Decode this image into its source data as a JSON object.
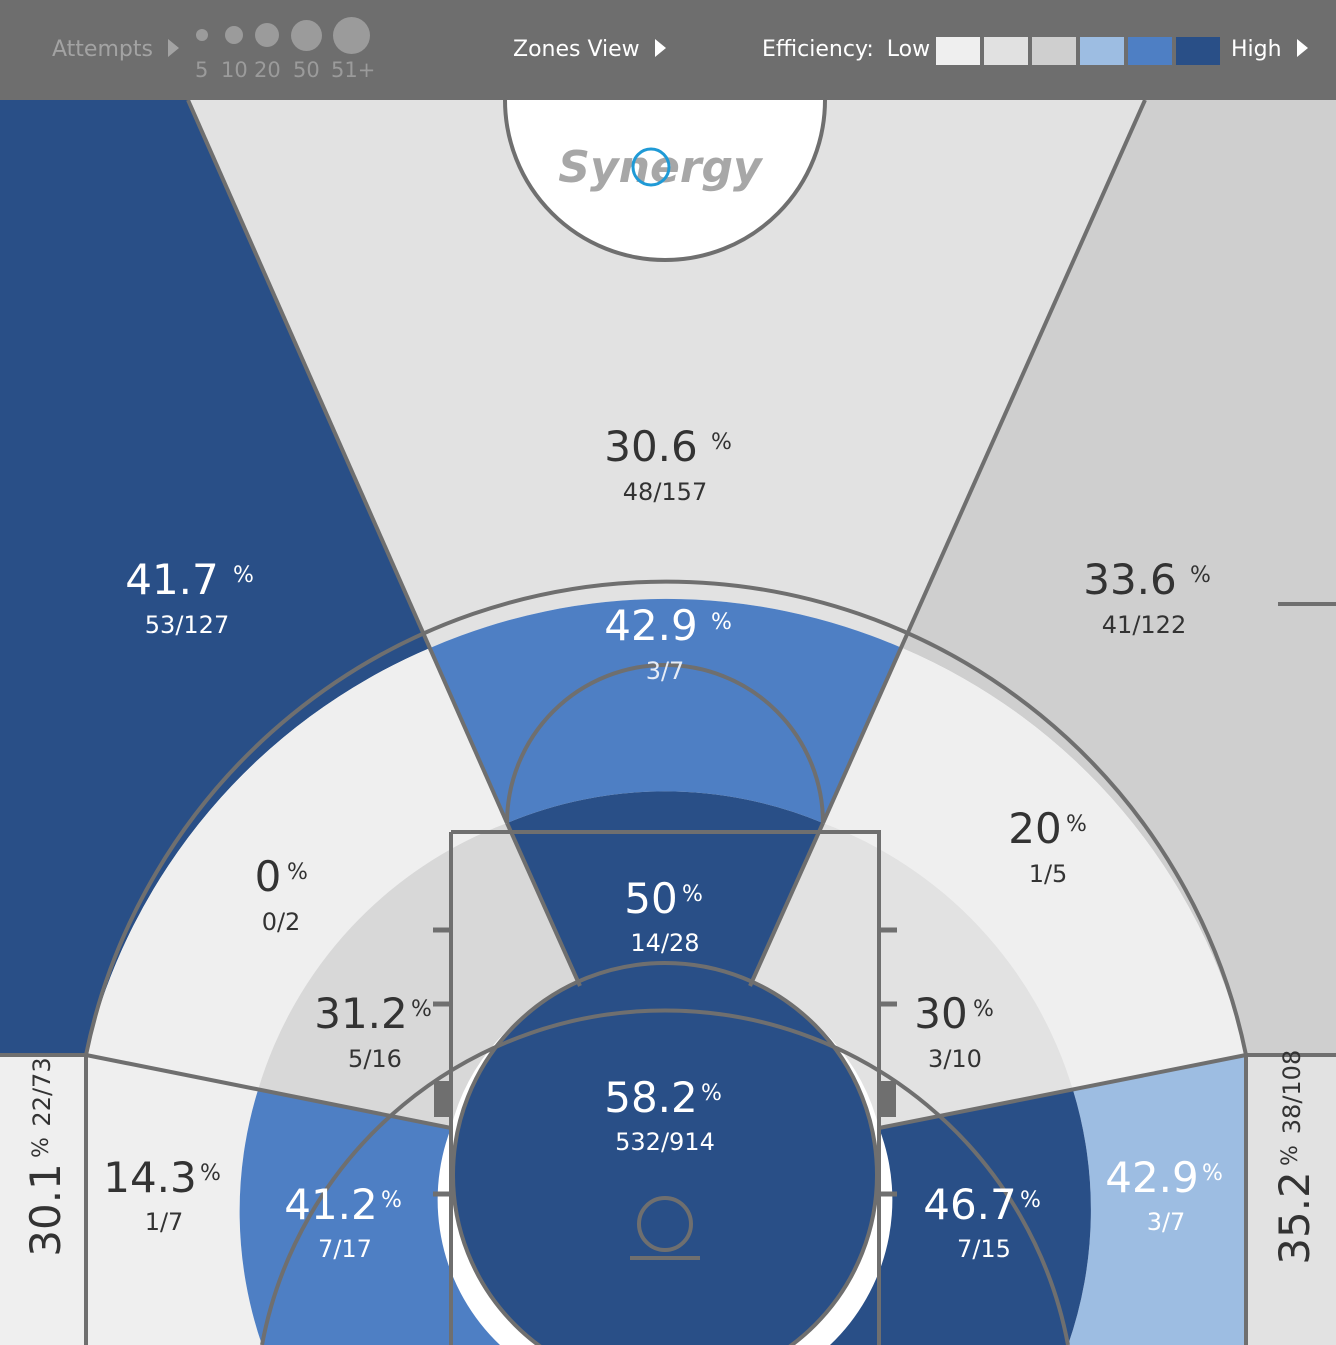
{
  "toolbar": {
    "attempts_label": "Attempts",
    "attempt_sizes": [
      "5",
      "10",
      "20",
      "50",
      "51+"
    ],
    "view_label": "Zones View",
    "efficiency_label": "Efficiency:",
    "low_label": "Low",
    "high_label": "High",
    "efficiency_scale": [
      "#efefef",
      "#e1e1e1",
      "#cfcfcf",
      "#9dbde2",
      "#4e7fc4",
      "#294f87"
    ]
  },
  "logo_text": "Synergy",
  "colors": {
    "dark_blue": "#294f87",
    "mid_blue": "#4e7fc4",
    "light_blue": "#9dbde2",
    "light_gray": "#efefef",
    "mid_gray": "#e2e2e2",
    "gray": "#cfcfcf",
    "line": "#6f6f6f",
    "toolbar_bg": "#6e6e6e"
  },
  "zones": {
    "left_wing_three": {
      "pct": "41.7",
      "made_att": "53/127"
    },
    "top_deep_three": {
      "pct": "30.6",
      "made_att": "48/157"
    },
    "right_wing_three": {
      "pct": "33.6",
      "made_att": "41/122"
    },
    "top_long_two": {
      "pct": "42.9",
      "made_att": "3/7"
    },
    "left_long_two": {
      "pct": "0",
      "made_att": "0/2"
    },
    "right_long_two": {
      "pct": "20",
      "made_att": "1/5"
    },
    "paint_upper": {
      "pct": "50",
      "made_att": "14/28"
    },
    "left_mid": {
      "pct": "31.2",
      "made_att": "5/16"
    },
    "right_mid": {
      "pct": "30",
      "made_att": "3/10"
    },
    "restricted_area": {
      "pct": "58.2",
      "made_att": "532/914"
    },
    "left_baseline_two": {
      "pct": "14.3",
      "made_att": "1/7"
    },
    "left_short_baseline": {
      "pct": "41.2",
      "made_att": "7/17"
    },
    "right_short_baseline": {
      "pct": "46.7",
      "made_att": "7/15"
    },
    "right_baseline_two": {
      "pct": "42.9",
      "made_att": "3/7"
    },
    "left_corner_three": {
      "pct": "30.1",
      "made_att": "22/73"
    },
    "right_corner_three": {
      "pct": "35.2",
      "made_att": "38/108"
    }
  },
  "percent_sign": "%"
}
